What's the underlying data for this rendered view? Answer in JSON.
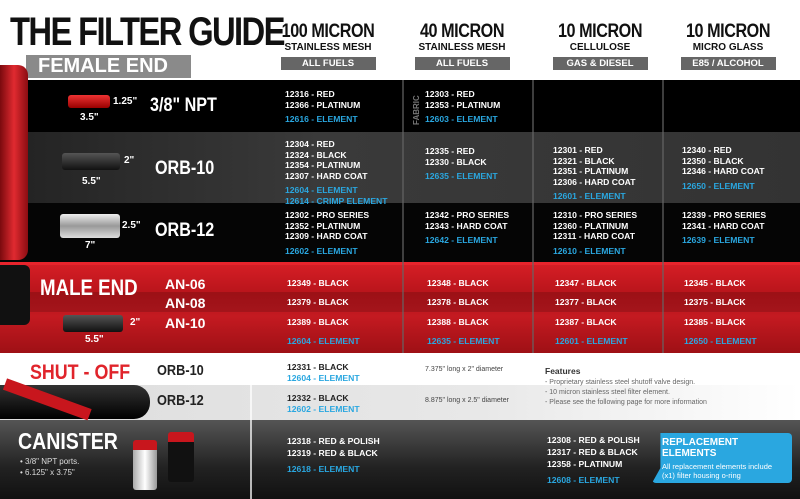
{
  "title": "THE FILTER GUIDE",
  "female_end": "FEMALE END",
  "columns": [
    {
      "micron": "100 MICRON",
      "material": "STAINLESS MESH",
      "fuel": "ALL FUELS"
    },
    {
      "micron": "40 MICRON",
      "material": "STAINLESS MESH",
      "fuel": "ALL FUELS"
    },
    {
      "micron": "10 MICRON",
      "material": "CELLULOSE",
      "fuel": "GAS & DIESEL"
    },
    {
      "micron": "10 MICRON",
      "material": "MICRO GLASS",
      "fuel": "E85 / ALCOHOL"
    }
  ],
  "fabric_label": "FABRIC",
  "female_rows": [
    {
      "label": "3/8\" NPT",
      "dims": [
        "1.25\"",
        "3.5\""
      ],
      "cells": [
        {
          "parts": [
            "12316 - RED",
            "12366 - PLATINUM"
          ],
          "elements": [
            "12616 - ELEMENT"
          ]
        },
        {
          "parts": [
            "12303 - RED",
            "12353 - PLATINUM"
          ],
          "elements": [
            "12603 - ELEMENT"
          ]
        },
        {
          "parts": [],
          "elements": []
        },
        {
          "parts": [],
          "elements": []
        }
      ]
    },
    {
      "label": "ORB-10",
      "dims": [
        "2\"",
        "5.5\""
      ],
      "cells": [
        {
          "parts": [
            "12304 - RED",
            "12324 - BLACK",
            "12354 - PLATINUM",
            "12307 - HARD COAT"
          ],
          "elements": [
            "12604 - ELEMENT",
            "12614 - CRIMP ELEMENT"
          ]
        },
        {
          "parts": [
            "12335 - RED",
            "12330 - BLACK"
          ],
          "elements": [
            "12635 - ELEMENT"
          ]
        },
        {
          "parts": [
            "12301 - RED",
            "12321 - BLACK",
            "12351 - PLATINUM",
            "12306 - HARD COAT"
          ],
          "elements": [
            "12601 - ELEMENT"
          ]
        },
        {
          "parts": [
            "12340 - RED",
            "12350 - BLACK",
            "12346 - HARD COAT"
          ],
          "elements": [
            "12650 - ELEMENT"
          ]
        }
      ]
    },
    {
      "label": "ORB-12",
      "dims": [
        "2.5\"",
        "7\""
      ],
      "cells": [
        {
          "parts": [
            "12302 - PRO SERIES",
            "12352 - PLATINUM",
            "12309 - HARD COAT"
          ],
          "elements": [
            "12602 - ELEMENT"
          ]
        },
        {
          "parts": [
            "12342 - PRO SERIES",
            "12343 - HARD COAT"
          ],
          "elements": [
            "12642 - ELEMENT"
          ]
        },
        {
          "parts": [
            "12310 - PRO SERIES",
            "12360 - PLATINUM",
            "12311 - HARD COAT"
          ],
          "elements": [
            "12610 - ELEMENT"
          ]
        },
        {
          "parts": [
            "12339 - PRO SERIES",
            "12341 - HARD COAT"
          ],
          "elements": [
            "12639 - ELEMENT"
          ]
        }
      ]
    }
  ],
  "male_end": {
    "label": "MALE END",
    "dims": [
      "2\"",
      "5.5\""
    ],
    "rows": [
      {
        "label": "AN-06",
        "cells": [
          "12349 - BLACK",
          "12348 - BLACK",
          "12347 - BLACK",
          "12345 - BLACK"
        ]
      },
      {
        "label": "AN-08",
        "cells": [
          "12379 - BLACK",
          "12378 - BLACK",
          "12377 - BLACK",
          "12375 - BLACK"
        ]
      },
      {
        "label": "AN-10",
        "cells": [
          "12389 - BLACK",
          "12388 - BLACK",
          "12387 - BLACK",
          "12385 - BLACK"
        ]
      }
    ],
    "elements": [
      "12604 - ELEMENT",
      "12635 - ELEMENT",
      "12601 - ELEMENT",
      "12650 - ELEMENT"
    ]
  },
  "shut_off": {
    "label": "SHUT - OFF",
    "rows": [
      {
        "label": "ORB-10",
        "part": "12331 - BLACK",
        "element": "12604 - ELEMENT",
        "size": "7.375\" long x 2\" diameter"
      },
      {
        "label": "ORB-12",
        "part": "12332 - BLACK",
        "element": "12602 - ELEMENT",
        "size": "8.875\" long x 2.5\" diameter"
      }
    ],
    "features_title": "Features",
    "features": [
      "- Proprietary stainless steel shutoff valve design.",
      "- 10 micron stainless steel filter element.",
      "- Please see the following page for more information"
    ]
  },
  "canister": {
    "label": "CANISTER",
    "specs": [
      "• 3/8\" NPT ports.",
      "• 6.125\" x 3.75\""
    ],
    "col1": {
      "parts": [
        "12318 - RED & POLISH",
        "12319 - RED & BLACK"
      ],
      "element": "12618 - ELEMENT"
    },
    "col3": {
      "parts": [
        "12308 - RED & POLISH",
        "12317 - RED & BLACK",
        "12358 - PLATINUM"
      ],
      "element": "12608 - ELEMENT"
    },
    "replacement_title": "REPLACEMENT ELEMENTS",
    "replacement_text": "All replacement elements include (x1) filter housing o-ring"
  },
  "colors": {
    "element_blue": "#2aa7e0",
    "red": "#d71f26",
    "callout": "#2aa7e0"
  }
}
